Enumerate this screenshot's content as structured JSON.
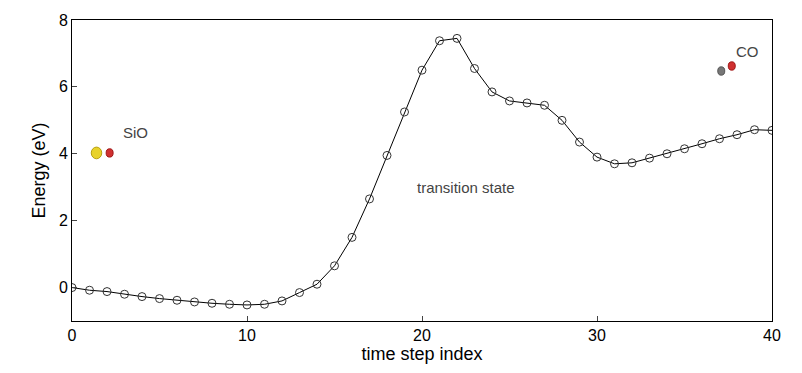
{
  "chart_data": {
    "type": "line",
    "x_label": "time step index",
    "y_label": "Energy (eV)",
    "x": [
      0,
      1,
      2,
      3,
      4,
      5,
      6,
      7,
      8,
      9,
      10,
      11,
      12,
      13,
      14,
      15,
      16,
      17,
      18,
      19,
      20,
      21,
      22,
      23,
      24,
      25,
      26,
      27,
      28,
      29,
      30,
      31,
      32,
      33,
      34,
      35,
      36,
      37,
      38,
      39,
      40
    ],
    "values": [
      0.0,
      -0.08,
      -0.12,
      -0.2,
      -0.27,
      -0.33,
      -0.38,
      -0.43,
      -0.47,
      -0.5,
      -0.52,
      -0.5,
      -0.4,
      -0.15,
      0.1,
      0.65,
      1.5,
      2.65,
      3.95,
      5.25,
      6.5,
      7.38,
      7.45,
      6.55,
      5.85,
      5.58,
      5.52,
      5.45,
      5.0,
      4.35,
      3.9,
      3.7,
      3.73,
      3.87,
      4.0,
      4.15,
      4.3,
      4.45,
      4.57,
      4.72,
      4.7
    ],
    "color": "#000000",
    "marker": "open_circle",
    "xlim": [
      0,
      40
    ],
    "ylim": [
      -1,
      8
    ],
    "xticks": [
      0,
      10,
      20,
      30,
      40
    ],
    "yticks": [
      0,
      2,
      4,
      6,
      8
    ],
    "grid": false,
    "annotations": [
      "SiO",
      "transition state",
      "CO"
    ]
  }
}
